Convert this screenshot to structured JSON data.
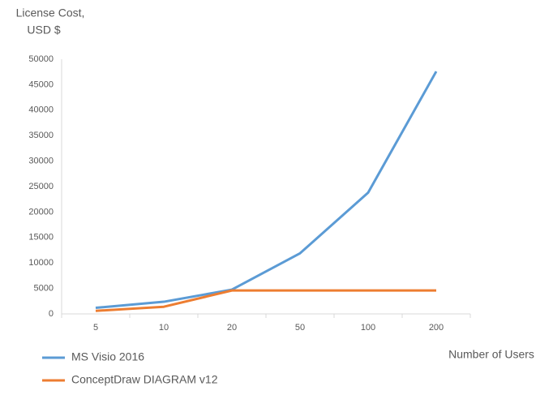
{
  "chart_data": {
    "type": "line",
    "ylabel": [
      "License Cost,",
      "USD $"
    ],
    "xlabel": "Number of Users",
    "categories": [
      "5",
      "10",
      "20",
      "50",
      "100",
      "200"
    ],
    "series": [
      {
        "name": "MS Visio 2016",
        "color": "#5b9bd5",
        "values": [
          1190,
          2380,
          4760,
          11900,
          23800,
          47600
        ]
      },
      {
        "name": "ConceptDraw DIAGRAM v12",
        "color": "#ed7d31",
        "values": [
          600,
          1400,
          4600,
          4600,
          4600,
          4600
        ]
      }
    ],
    "ylim": [
      0,
      50000
    ],
    "yticks": [
      0,
      5000,
      10000,
      15000,
      20000,
      25000,
      30000,
      35000,
      40000,
      45000,
      50000
    ],
    "grid": false,
    "legend": "bottom-left"
  }
}
